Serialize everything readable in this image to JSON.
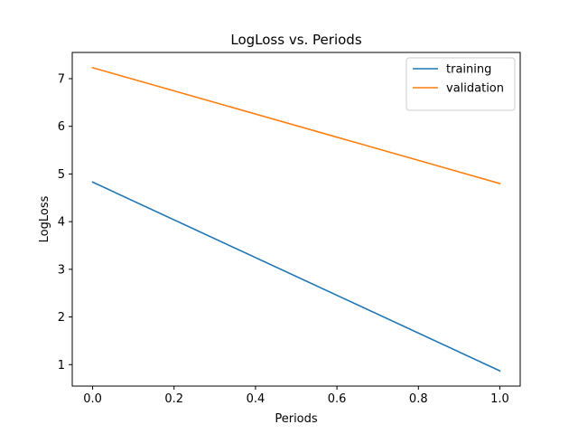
{
  "chart_data": {
    "type": "line",
    "title": "LogLoss vs. Periods",
    "xlabel": "Periods",
    "ylabel": "LogLoss",
    "xlim": [
      -0.05,
      1.05
    ],
    "ylim": [
      0.55,
      7.55
    ],
    "xticks": [
      0.0,
      0.2,
      0.4,
      0.6,
      0.8,
      1.0
    ],
    "xtick_labels": [
      "0.0",
      "0.2",
      "0.4",
      "0.6",
      "0.8",
      "1.0"
    ],
    "yticks": [
      1,
      2,
      3,
      4,
      5,
      6,
      7
    ],
    "ytick_labels": [
      "1",
      "2",
      "3",
      "4",
      "5",
      "6",
      "7"
    ],
    "grid": false,
    "legend_position": "top-right",
    "series": [
      {
        "name": "training",
        "color": "#1f77b4",
        "x": [
          0.0,
          1.0
        ],
        "y": [
          4.83,
          0.87
        ]
      },
      {
        "name": "validation",
        "color": "#ff7f0e",
        "x": [
          0.0,
          1.0
        ],
        "y": [
          7.23,
          4.8
        ]
      }
    ]
  }
}
